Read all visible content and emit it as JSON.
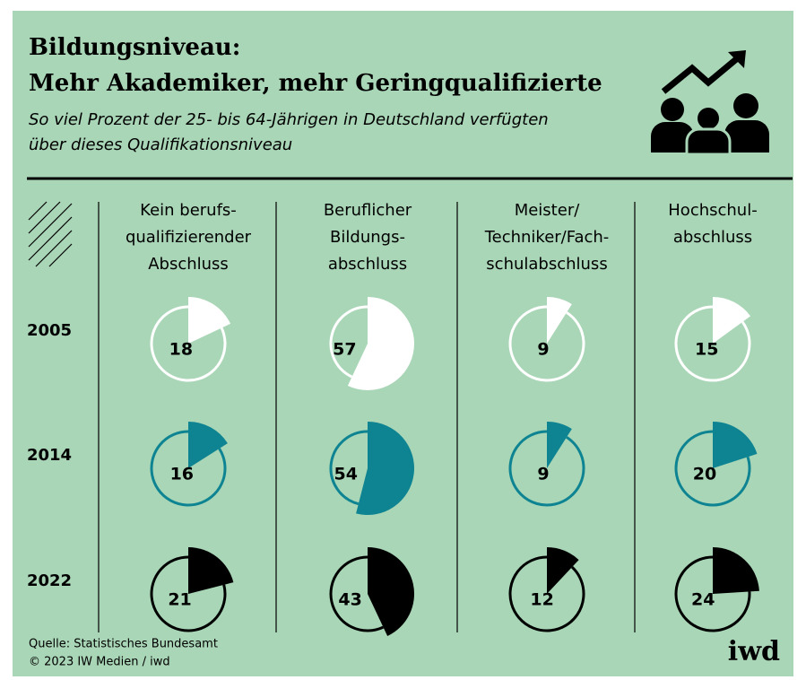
{
  "chart_data": {
    "type": "pie",
    "title": [
      "Bildungsniveau:",
      "Mehr Akademiker, mehr Geringqualifizierte"
    ],
    "subtitle": [
      "So viel Prozent der 25- bis 64-Jährigen in Deutschland verfügten",
      "über dieses Qualifikationsniveau"
    ],
    "categories": [
      [
        "Kein berufs-",
        "qualifizierender",
        "Abschluss"
      ],
      [
        "Beruflicher",
        "Bildungs-",
        "abschluss"
      ],
      [
        "Meister/",
        "Techniker/Fach-",
        "schulabschluss"
      ],
      [
        "Hochschul-",
        "abschluss"
      ]
    ],
    "series": [
      {
        "name": "2005",
        "color": "#ffffff",
        "values": [
          18,
          57,
          9,
          15
        ]
      },
      {
        "name": "2014",
        "color": "#0e8493",
        "values": [
          16,
          54,
          9,
          20
        ]
      },
      {
        "name": "2022",
        "color": "#000000",
        "values": [
          21,
          43,
          12,
          24
        ]
      }
    ],
    "source": "Quelle: Statistisches Bundesamt",
    "copyright": "© 2023 IW Medien / iwd",
    "logo": "iwd"
  }
}
